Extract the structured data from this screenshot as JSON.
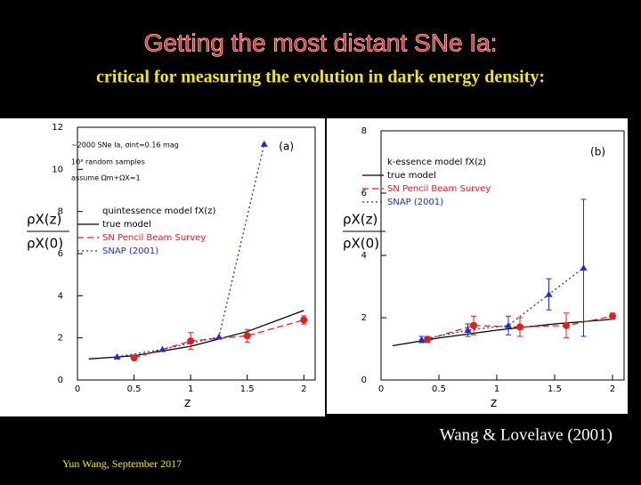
{
  "title": "Getting the most distant SNe Ia:",
  "subtitle": "critical for measuring the evolution in dark energy density:",
  "credit": "Wang & Lovelave (2001)",
  "footer": "Yun Wang, September 2017",
  "chart_data": [
    {
      "type": "line",
      "xlabel": "z",
      "ylabel": [
        "ρX(z)",
        "ρX(0)"
      ],
      "legend_title": "quintessence model fX(z)",
      "annotations": [
        "(a)",
        "~2000 SNe Ia, σint=0.16 mag",
        "10³ random samples",
        "assume Ωm+ΩX=1"
      ],
      "xlim": [
        0,
        2.1
      ],
      "ylim": [
        0,
        12
      ],
      "xticks": [
        0,
        0.5,
        1,
        1.5,
        2
      ],
      "yticks": [
        0,
        2,
        4,
        6,
        8,
        10,
        12
      ],
      "series": [
        {
          "name": "true model",
          "color": "#000000",
          "dash": "solid",
          "x": [
            0.1,
            0.5,
            1,
            1.5,
            2
          ],
          "values": [
            1.0,
            1.15,
            1.6,
            2.3,
            3.3
          ]
        },
        {
          "name": "SN Pencil Beam Survey",
          "color": "#e02020",
          "dash": "dashed",
          "marker": "circle",
          "x": [
            0.5,
            1,
            1.5,
            2
          ],
          "values": [
            1.05,
            1.85,
            2.1,
            2.85
          ],
          "errors": [
            0.1,
            0.4,
            0.3,
            0.2
          ]
        },
        {
          "name": "SNAP (2001)",
          "color": "#2030c0",
          "dash": "dotted",
          "marker": "triangle",
          "x": [
            0.35,
            0.75,
            1.25,
            1.65
          ],
          "values": [
            1.1,
            1.45,
            2.05,
            11.2
          ]
        }
      ]
    },
    {
      "type": "line",
      "xlabel": "z",
      "ylabel": [
        "ρX(z)",
        "ρX(0)"
      ],
      "legend_title": "k-essence model fX(z)",
      "annotations": [
        "(b)"
      ],
      "xlim": [
        0,
        2.1
      ],
      "ylim": [
        0,
        8
      ],
      "xticks": [
        0,
        0.5,
        1,
        1.5,
        2
      ],
      "yticks": [
        0,
        2,
        4,
        6,
        8
      ],
      "series": [
        {
          "name": "true model",
          "color": "#000000",
          "dash": "solid",
          "x": [
            0.1,
            0.5,
            1,
            1.5,
            2
          ],
          "values": [
            1.1,
            1.35,
            1.6,
            1.8,
            1.95
          ]
        },
        {
          "name": "SN Pencil Beam Survey",
          "color": "#e02020",
          "dash": "dashed",
          "marker": "circle",
          "x": [
            0.4,
            0.8,
            1.2,
            1.6,
            2
          ],
          "values": [
            1.3,
            1.75,
            1.7,
            1.75,
            2.05
          ],
          "errors": [
            0.1,
            0.3,
            0.3,
            0.4,
            0.1
          ]
        },
        {
          "name": "SNAP (2001)",
          "color": "#2030c0",
          "dash": "dotted",
          "marker": "triangle",
          "x": [
            0.35,
            0.75,
            1.1,
            1.45,
            1.75
          ],
          "values": [
            1.3,
            1.6,
            1.75,
            2.75,
            3.6
          ],
          "errors": [
            0.1,
            0.2,
            0.3,
            0.5,
            2.2
          ]
        }
      ]
    }
  ]
}
